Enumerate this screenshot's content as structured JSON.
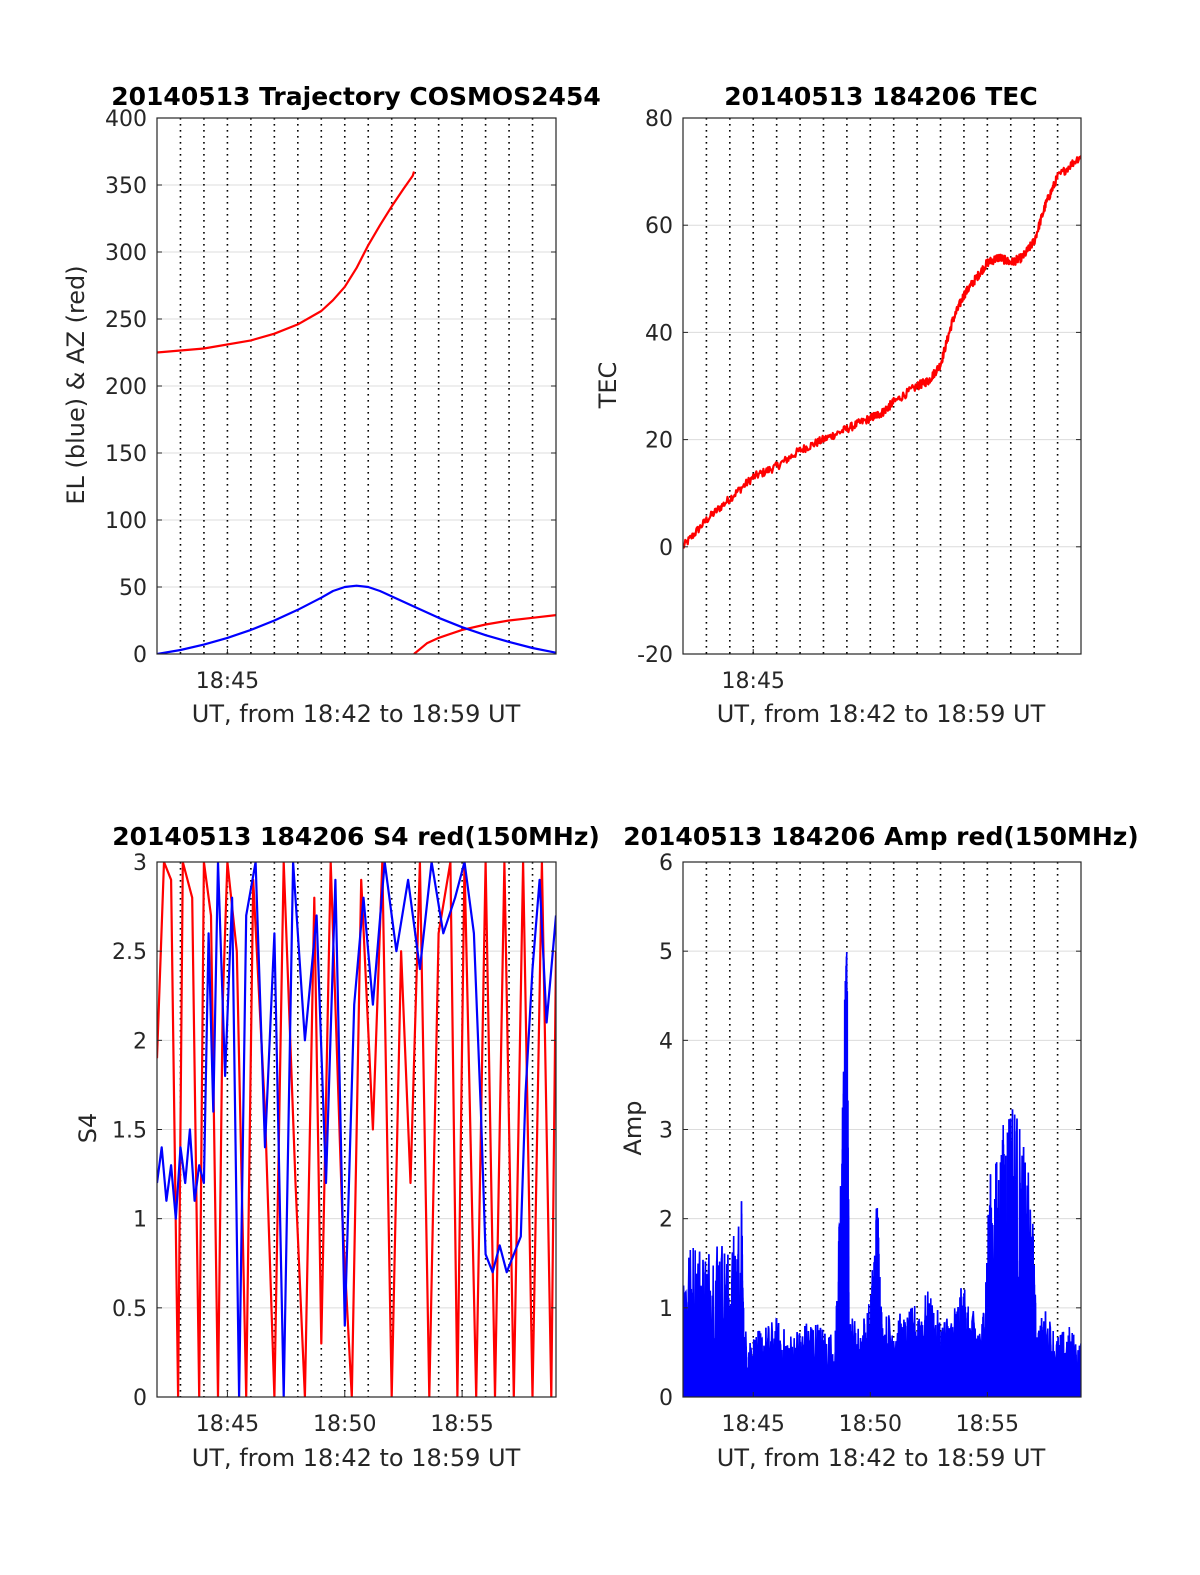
{
  "chart_data": [
    {
      "id": "traj",
      "type": "line",
      "title": "20140513 Trajectory COSMOS2454",
      "xlabel": "UT, from 18:42 to 18:59 UT",
      "ylabel": "EL (blue) & AZ (red)",
      "xlim_minutes": [
        0,
        17
      ],
      "ylim": [
        0,
        400
      ],
      "yticks": [
        0,
        50,
        100,
        150,
        200,
        250,
        300,
        350,
        400
      ],
      "xtick_labels": [
        {
          "minute": 3,
          "label": "18:45"
        }
      ],
      "grid": true,
      "series": [
        {
          "color": "#ff0000",
          "segments": [
            [
              [
                0,
                225
              ],
              [
                2,
                228
              ],
              [
                4,
                234
              ],
              [
                5,
                239
              ],
              [
                6,
                246
              ],
              [
                7,
                256
              ],
              [
                7.5,
                264
              ],
              [
                8,
                274
              ],
              [
                8.5,
                288
              ],
              [
                9,
                305
              ],
              [
                9.5,
                320
              ],
              [
                10,
                334
              ],
              [
                10.5,
                347
              ],
              [
                10.9,
                357
              ],
              [
                10.95,
                360
              ]
            ],
            [
              [
                10.95,
                0
              ],
              [
                11.5,
                8
              ],
              [
                12,
                12
              ],
              [
                13,
                18
              ],
              [
                14,
                22
              ],
              [
                15,
                25
              ],
              [
                16,
                27
              ],
              [
                17,
                29
              ]
            ]
          ]
        },
        {
          "color": "#0000ff",
          "segments": [
            [
              [
                0,
                0
              ],
              [
                1,
                3
              ],
              [
                2,
                7
              ],
              [
                3,
                12
              ],
              [
                4,
                18
              ],
              [
                5,
                25
              ],
              [
                6,
                33
              ],
              [
                7,
                42
              ],
              [
                7.5,
                47
              ],
              [
                8,
                50
              ],
              [
                8.5,
                51
              ],
              [
                9,
                50
              ],
              [
                9.5,
                47
              ],
              [
                10,
                43
              ],
              [
                11,
                35
              ],
              [
                12,
                27
              ],
              [
                13,
                20
              ],
              [
                14,
                14
              ],
              [
                15,
                9
              ],
              [
                16,
                4.5
              ],
              [
                17,
                1
              ]
            ]
          ]
        }
      ]
    },
    {
      "id": "tec",
      "type": "line",
      "title": "20140513 184206 TEC",
      "xlabel": "UT, from 18:42 to 18:59 UT",
      "ylabel": "TEC",
      "xlim_minutes": [
        0,
        17
      ],
      "ylim": [
        -20,
        80
      ],
      "yticks": [
        -20,
        0,
        20,
        40,
        60,
        80
      ],
      "xtick_labels": [
        {
          "minute": 3,
          "label": "18:45"
        }
      ],
      "grid": true,
      "series": [
        {
          "color": "#ff0000",
          "noise": 0.8,
          "segments": [
            [
              [
                0,
                0
              ],
              [
                1,
                5
              ],
              [
                2,
                9
              ],
              [
                3,
                13
              ],
              [
                4,
                15
              ],
              [
                5,
                18
              ],
              [
                6,
                20
              ],
              [
                7,
                22
              ],
              [
                8,
                24
              ],
              [
                8.5,
                25
              ],
              [
                9,
                27
              ],
              [
                10,
                30
              ],
              [
                10.5,
                31
              ],
              [
                11,
                34
              ],
              [
                11.5,
                42
              ],
              [
                12,
                47
              ],
              [
                12.5,
                50
              ],
              [
                13,
                53
              ],
              [
                13.5,
                54
              ],
              [
                14,
                53
              ],
              [
                14.5,
                54
              ],
              [
                15,
                57
              ],
              [
                15.5,
                64
              ],
              [
                16,
                69
              ],
              [
                17,
                73
              ]
            ]
          ]
        }
      ]
    },
    {
      "id": "s4",
      "type": "line",
      "title": "20140513 184206 S4 red(150MHz)",
      "xlabel": "UT, from 18:42 to 18:59 UT",
      "ylabel": "S4",
      "xlim_minutes": [
        0,
        17
      ],
      "ylim": [
        0,
        3
      ],
      "yticks": [
        0,
        0.5,
        1,
        1.5,
        2,
        2.5,
        3
      ],
      "xtick_labels": [
        {
          "minute": 3,
          "label": "18:45"
        },
        {
          "minute": 8,
          "label": "18:50"
        },
        {
          "minute": 13,
          "label": "18:55"
        }
      ],
      "grid": true,
      "series": [
        {
          "color": "#ff0000",
          "segments": [
            [
              [
                0,
                1.9
              ],
              [
                0.3,
                3
              ],
              [
                0.6,
                2.9
              ],
              [
                0.9,
                0
              ],
              [
                1.1,
                3
              ],
              [
                1.5,
                2.8
              ],
              [
                1.8,
                0
              ],
              [
                2.0,
                3
              ],
              [
                2.3,
                2.7
              ],
              [
                2.6,
                0
              ],
              [
                2.8,
                2.2
              ],
              [
                3.0,
                3
              ],
              [
                3.4,
                2.5
              ],
              [
                3.8,
                0
              ],
              [
                4.1,
                2.9
              ],
              [
                4.6,
                1.6
              ],
              [
                5.0,
                0
              ],
              [
                5.4,
                3
              ],
              [
                5.9,
                1.2
              ],
              [
                6.3,
                0
              ],
              [
                6.7,
                2.8
              ],
              [
                7.0,
                0.3
              ],
              [
                7.4,
                3
              ],
              [
                7.9,
                1.0
              ],
              [
                8.3,
                0
              ],
              [
                8.7,
                2.9
              ],
              [
                9.2,
                1.5
              ],
              [
                9.6,
                3
              ],
              [
                10,
                0
              ],
              [
                10.4,
                2.5
              ],
              [
                10.8,
                1.2
              ],
              [
                11.2,
                3
              ],
              [
                11.6,
                0
              ],
              [
                12.0,
                2.6
              ],
              [
                12.5,
                3
              ],
              [
                12.8,
                0
              ],
              [
                13.1,
                3
              ],
              [
                13.6,
                0
              ],
              [
                14.0,
                3
              ],
              [
                14.4,
                0
              ],
              [
                14.8,
                3
              ],
              [
                15.2,
                0
              ],
              [
                15.6,
                3
              ],
              [
                16.0,
                0
              ],
              [
                16.4,
                3
              ],
              [
                16.8,
                0
              ],
              [
                17,
                2.5
              ]
            ]
          ]
        },
        {
          "color": "#0000ff",
          "segments": [
            [
              [
                0,
                1.2
              ],
              [
                0.2,
                1.4
              ],
              [
                0.4,
                1.1
              ],
              [
                0.6,
                1.3
              ],
              [
                0.8,
                1.0
              ],
              [
                1.0,
                1.4
              ],
              [
                1.2,
                1.2
              ],
              [
                1.4,
                1.5
              ],
              [
                1.6,
                1.1
              ],
              [
                1.8,
                1.3
              ],
              [
                2.0,
                1.2
              ],
              [
                2.2,
                2.6
              ],
              [
                2.4,
                1.6
              ],
              [
                2.6,
                3
              ],
              [
                2.9,
                1.8
              ],
              [
                3.2,
                2.8
              ],
              [
                3.5,
                0
              ],
              [
                3.8,
                2.7
              ],
              [
                4.2,
                3
              ],
              [
                4.6,
                1.4
              ],
              [
                5.0,
                2.6
              ],
              [
                5.4,
                0
              ],
              [
                5.8,
                3
              ],
              [
                6.3,
                2.0
              ],
              [
                6.8,
                2.7
              ],
              [
                7.2,
                1.2
              ],
              [
                7.6,
                2.9
              ],
              [
                8.0,
                0.4
              ],
              [
                8.4,
                2.2
              ],
              [
                8.8,
                2.8
              ],
              [
                9.2,
                2.2
              ],
              [
                9.7,
                3
              ],
              [
                10.2,
                2.5
              ],
              [
                10.7,
                2.9
              ],
              [
                11.2,
                2.4
              ],
              [
                11.7,
                3
              ],
              [
                12.2,
                2.6
              ],
              [
                12.7,
                2.8
              ],
              [
                13.1,
                3
              ],
              [
                13.5,
                2.6
              ],
              [
                13.8,
                1.6
              ],
              [
                14.0,
                0.8
              ],
              [
                14.3,
                0.7
              ],
              [
                14.6,
                0.85
              ],
              [
                14.9,
                0.7
              ],
              [
                15.2,
                0.8
              ],
              [
                15.5,
                0.9
              ],
              [
                15.7,
                1.7
              ],
              [
                16.0,
                2.4
              ],
              [
                16.3,
                2.9
              ],
              [
                16.6,
                2.1
              ],
              [
                17,
                2.7
              ]
            ]
          ]
        }
      ]
    },
    {
      "id": "amp",
      "type": "line",
      "title": "20140513 184206 Amp red(150MHz)",
      "xlabel": "UT, from 18:42 to 18:59 UT",
      "ylabel": "Amp",
      "xlim_minutes": [
        0,
        17
      ],
      "ylim": [
        0,
        6
      ],
      "yticks": [
        0,
        1,
        2,
        3,
        4,
        5,
        6
      ],
      "xtick_labels": [
        {
          "minute": 3,
          "label": "18:45"
        },
        {
          "minute": 8,
          "label": "18:50"
        },
        {
          "minute": 13,
          "label": "18:55"
        }
      ],
      "grid": true,
      "series": [
        {
          "color": "#0000ff",
          "fill_to_zero": true,
          "segments": [
            [
              [
                0,
                1.6
              ],
              [
                0.5,
                1.8
              ],
              [
                1.0,
                1.7
              ],
              [
                1.5,
                1.9
              ],
              [
                2.0,
                1.6
              ],
              [
                2.5,
                2.3
              ],
              [
                2.6,
                0.8
              ],
              [
                3.0,
                0.7
              ],
              [
                3.5,
                0.8
              ],
              [
                4.0,
                0.9
              ],
              [
                4.5,
                0.7
              ],
              [
                5.0,
                0.8
              ],
              [
                5.5,
                0.9
              ],
              [
                6.0,
                0.8
              ],
              [
                6.5,
                0.7
              ],
              [
                6.7,
                2.2
              ],
              [
                6.9,
                4.5
              ],
              [
                7.0,
                5.4
              ],
              [
                7.1,
                1.0
              ],
              [
                7.5,
                0.8
              ],
              [
                8.0,
                1.1
              ],
              [
                8.3,
                2.4
              ],
              [
                8.5,
                0.9
              ],
              [
                9.0,
                1.0
              ],
              [
                9.5,
                0.9
              ],
              [
                10.0,
                1.1
              ],
              [
                10.5,
                1.2
              ],
              [
                11.0,
                0.9
              ],
              [
                11.5,
                1.0
              ],
              [
                12.0,
                1.3
              ],
              [
                12.2,
                1.0
              ],
              [
                12.8,
                0.9
              ],
              [
                13.1,
                2.5
              ],
              [
                13.5,
                2.8
              ],
              [
                13.8,
                3.3
              ],
              [
                14.1,
                3.5
              ],
              [
                14.5,
                2.9
              ],
              [
                14.9,
                2.3
              ],
              [
                15.1,
                0.8
              ],
              [
                15.5,
                1.0
              ],
              [
                16.0,
                0.7
              ],
              [
                16.5,
                0.8
              ],
              [
                17,
                0.6
              ]
            ]
          ]
        }
      ]
    }
  ]
}
